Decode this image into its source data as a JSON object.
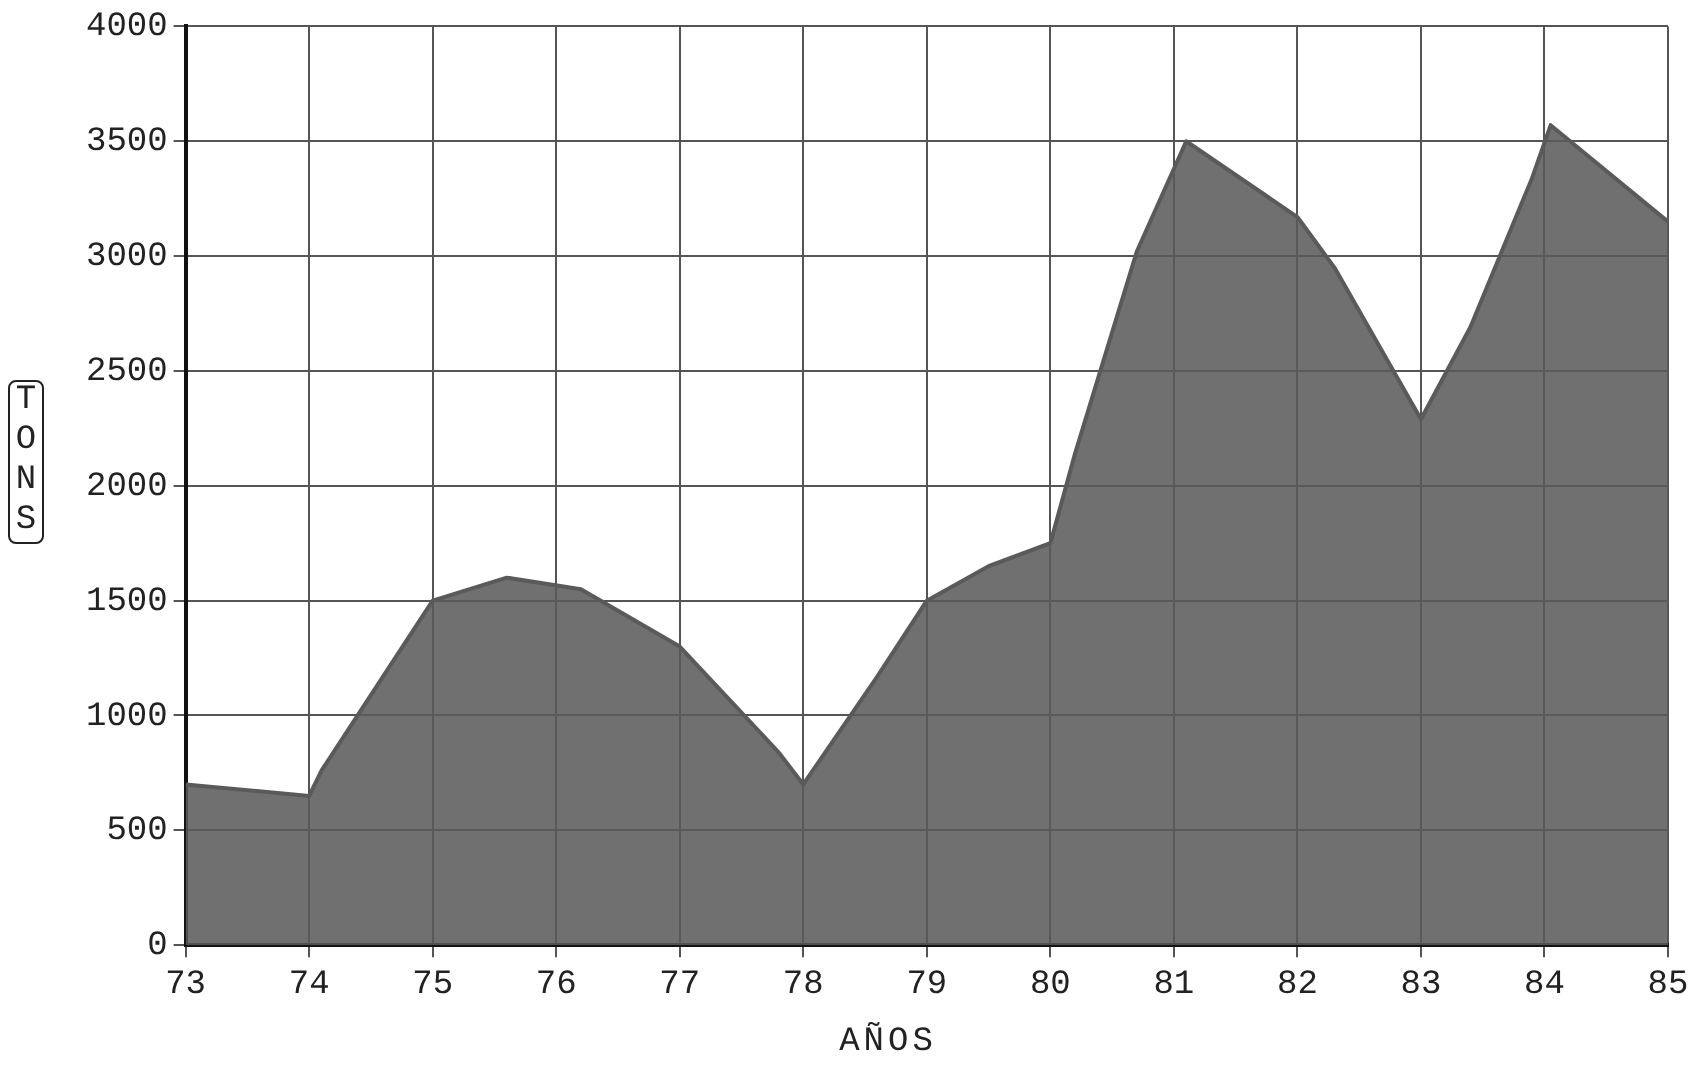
{
  "chart_data": {
    "type": "area",
    "xlabel": "AÑOS",
    "ylabel": "TONS",
    "x": [
      73,
      74,
      74.1,
      75,
      75.6,
      76.2,
      77,
      77.8,
      78,
      78.6,
      79,
      79.5,
      80,
      80.2,
      80.7,
      81.1,
      82,
      82.3,
      83,
      83.4,
      83.9,
      84.05,
      85
    ],
    "series": [
      {
        "color": "#5a5a5a",
        "values": [
          700,
          650,
          760,
          1500,
          1600,
          1550,
          1300,
          840,
          700,
          1170,
          1500,
          1650,
          1750,
          2140,
          3020,
          3500,
          3170,
          2950,
          2290,
          2690,
          3340,
          3570,
          3150
        ]
      }
    ],
    "xlim": [
      73,
      85
    ],
    "xticks": [
      73,
      74,
      75,
      76,
      77,
      78,
      79,
      80,
      81,
      82,
      83,
      84,
      85
    ],
    "ylim": [
      0,
      4000
    ],
    "yticks": [
      0,
      500,
      1000,
      1500,
      2000,
      2500,
      3000,
      3500,
      4000
    ],
    "grid": true,
    "legend": false
  }
}
